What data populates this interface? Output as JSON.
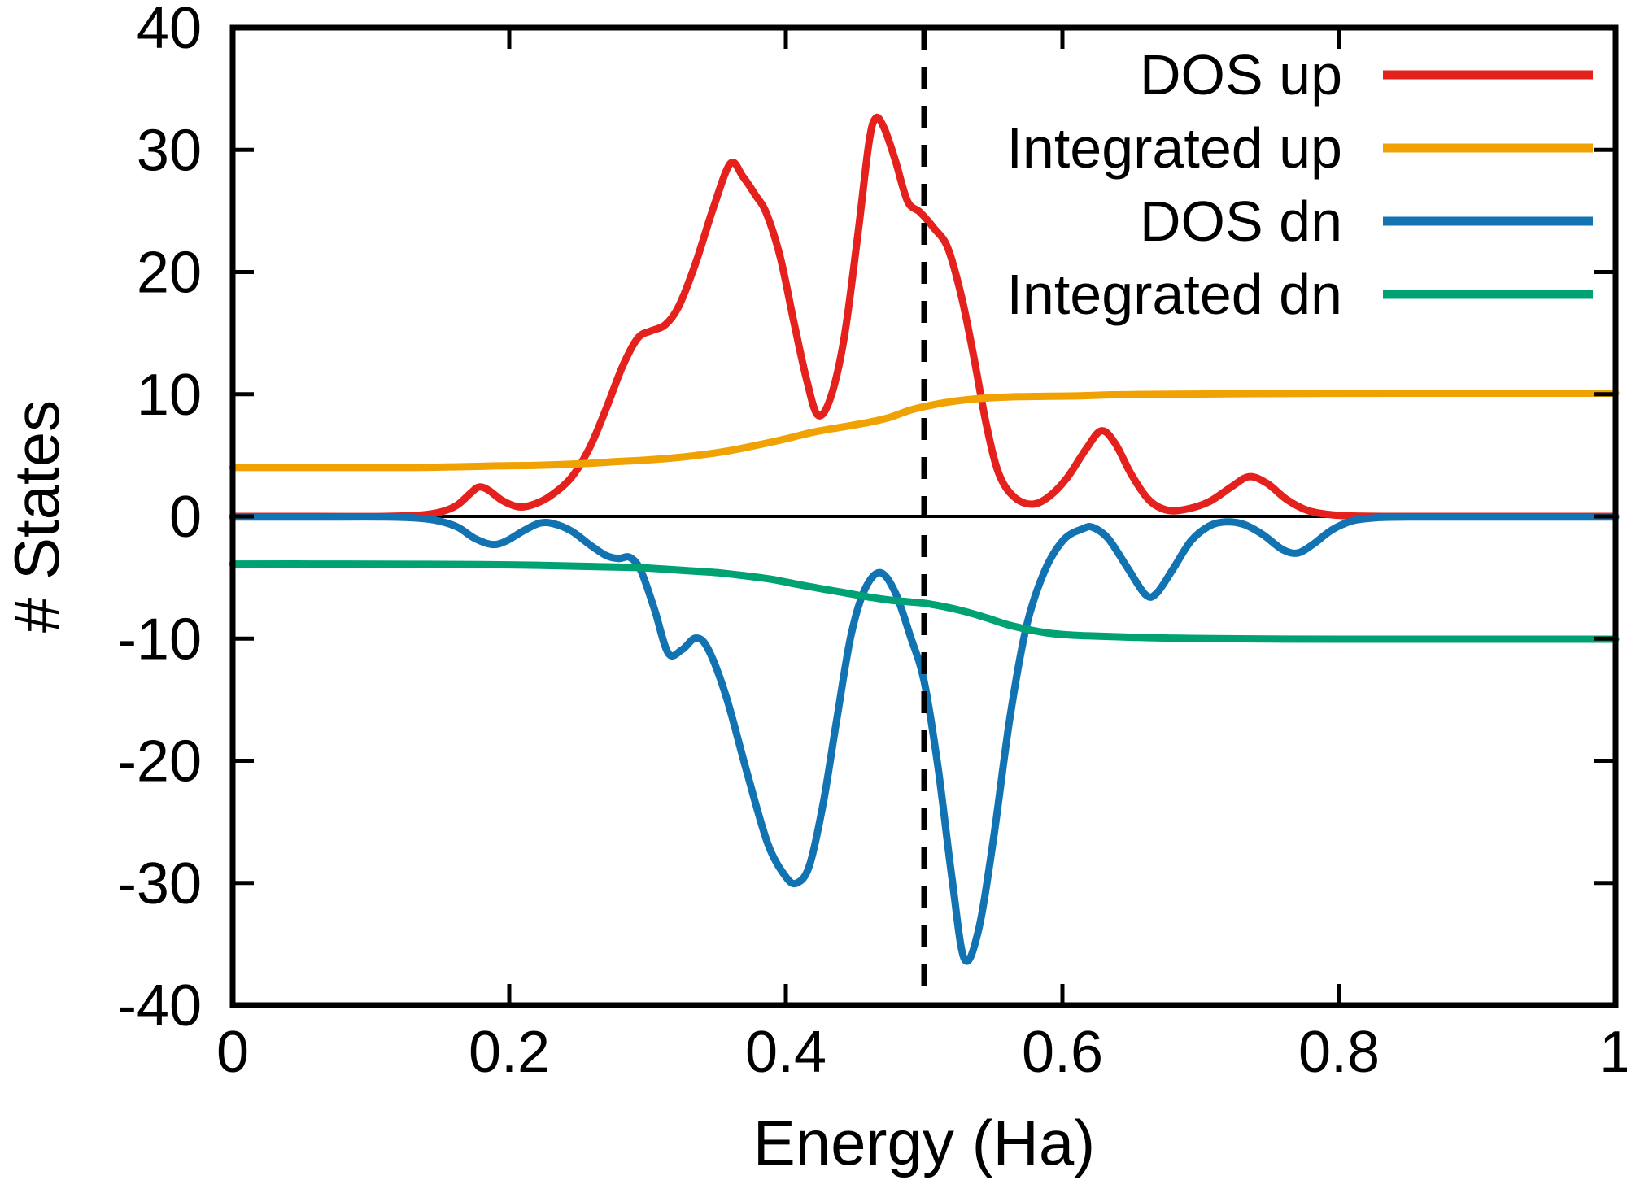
{
  "figure": {
    "background": "#ffffff",
    "border_color": "#000000"
  },
  "chart_data": {
    "type": "line",
    "title": "",
    "xlabel": "Energy (Ha)",
    "ylabel": "# States",
    "xlim": [
      0,
      1
    ],
    "ylim": [
      -40,
      40
    ],
    "x_tick_values": [
      0,
      0.2,
      0.4,
      0.6,
      0.8,
      1
    ],
    "x_tick_labels": [
      "0",
      "0.2",
      "0.4",
      "0.6",
      "0.8",
      "1"
    ],
    "y_tick_values": [
      40,
      30,
      20,
      10,
      0,
      -10,
      -20,
      -30,
      -40
    ],
    "y_tick_labels": [
      "40",
      "30",
      "20",
      "10",
      "0",
      "-10",
      "-20",
      "-30",
      "-40"
    ],
    "grid": false,
    "legend_position": "top-right-inside",
    "zero_line": {
      "y": 0,
      "color": "#000000"
    },
    "fermi_line": {
      "x": 0.5,
      "style": "dashed",
      "color": "#000000"
    },
    "series": [
      {
        "name": "DOS up",
        "color": "#e4211c",
        "points": [
          [
            0.0,
            0
          ],
          [
            0.06,
            0
          ],
          [
            0.11,
            0
          ],
          [
            0.135,
            0.1
          ],
          [
            0.15,
            0.35
          ],
          [
            0.162,
            0.9
          ],
          [
            0.172,
            1.9
          ],
          [
            0.178,
            2.4
          ],
          [
            0.185,
            2.15
          ],
          [
            0.195,
            1.3
          ],
          [
            0.207,
            0.78
          ],
          [
            0.218,
            1.0
          ],
          [
            0.23,
            1.7
          ],
          [
            0.245,
            3.2
          ],
          [
            0.258,
            5.6
          ],
          [
            0.27,
            8.8
          ],
          [
            0.282,
            12.3
          ],
          [
            0.293,
            14.6
          ],
          [
            0.303,
            15.2
          ],
          [
            0.313,
            15.7
          ],
          [
            0.323,
            17.3
          ],
          [
            0.335,
            20.8
          ],
          [
            0.348,
            25.4
          ],
          [
            0.36,
            28.9
          ],
          [
            0.369,
            27.8
          ],
          [
            0.378,
            26.3
          ],
          [
            0.386,
            24.8
          ],
          [
            0.396,
            21.2
          ],
          [
            0.406,
            15.8
          ],
          [
            0.415,
            11.2
          ],
          [
            0.423,
            8.3
          ],
          [
            0.432,
            9.6
          ],
          [
            0.442,
            14.5
          ],
          [
            0.452,
            23.0
          ],
          [
            0.46,
            30.5
          ],
          [
            0.465,
            32.6
          ],
          [
            0.471,
            31.8
          ],
          [
            0.479,
            29.2
          ],
          [
            0.488,
            25.8
          ],
          [
            0.497,
            24.9
          ],
          [
            0.507,
            23.6
          ],
          [
            0.517,
            22.0
          ],
          [
            0.527,
            18.0
          ],
          [
            0.536,
            13.0
          ],
          [
            0.545,
            7.5
          ],
          [
            0.554,
            3.5
          ],
          [
            0.565,
            1.6
          ],
          [
            0.578,
            1.0
          ],
          [
            0.59,
            1.6
          ],
          [
            0.603,
            3.1
          ],
          [
            0.617,
            5.5
          ],
          [
            0.628,
            7.0
          ],
          [
            0.638,
            6.0
          ],
          [
            0.65,
            3.4
          ],
          [
            0.663,
            1.3
          ],
          [
            0.676,
            0.5
          ],
          [
            0.69,
            0.6
          ],
          [
            0.706,
            1.2
          ],
          [
            0.722,
            2.4
          ],
          [
            0.735,
            3.25
          ],
          [
            0.748,
            2.7
          ],
          [
            0.762,
            1.4
          ],
          [
            0.777,
            0.5
          ],
          [
            0.793,
            0.15
          ],
          [
            0.81,
            0.03
          ],
          [
            0.84,
            0
          ],
          [
            0.92,
            0
          ],
          [
            1.0,
            0
          ]
        ]
      },
      {
        "name": "Integrated up",
        "color": "#f0a202",
        "points": [
          [
            0.0,
            4.0
          ],
          [
            0.08,
            4.0
          ],
          [
            0.13,
            4.0
          ],
          [
            0.16,
            4.05
          ],
          [
            0.19,
            4.13
          ],
          [
            0.22,
            4.18
          ],
          [
            0.25,
            4.3
          ],
          [
            0.28,
            4.5
          ],
          [
            0.3,
            4.62
          ],
          [
            0.32,
            4.8
          ],
          [
            0.34,
            5.05
          ],
          [
            0.36,
            5.4
          ],
          [
            0.38,
            5.85
          ],
          [
            0.4,
            6.35
          ],
          [
            0.42,
            6.9
          ],
          [
            0.44,
            7.3
          ],
          [
            0.46,
            7.7
          ],
          [
            0.475,
            8.1
          ],
          [
            0.49,
            8.7
          ],
          [
            0.505,
            9.1
          ],
          [
            0.52,
            9.4
          ],
          [
            0.535,
            9.6
          ],
          [
            0.55,
            9.72
          ],
          [
            0.57,
            9.8
          ],
          [
            0.59,
            9.83
          ],
          [
            0.61,
            9.86
          ],
          [
            0.63,
            9.93
          ],
          [
            0.65,
            9.97
          ],
          [
            0.68,
            10.0
          ],
          [
            0.71,
            10.02
          ],
          [
            0.74,
            10.05
          ],
          [
            0.78,
            10.07
          ],
          [
            0.85,
            10.08
          ],
          [
            1.0,
            10.08
          ]
        ]
      },
      {
        "name": "DOS dn",
        "color": "#1273b2",
        "points": [
          [
            0.0,
            -0.05
          ],
          [
            0.06,
            -0.05
          ],
          [
            0.11,
            -0.05
          ],
          [
            0.135,
            -0.15
          ],
          [
            0.15,
            -0.4
          ],
          [
            0.163,
            -0.9
          ],
          [
            0.175,
            -1.8
          ],
          [
            0.188,
            -2.3
          ],
          [
            0.198,
            -2.0
          ],
          [
            0.21,
            -1.2
          ],
          [
            0.222,
            -0.55
          ],
          [
            0.232,
            -0.6
          ],
          [
            0.245,
            -1.2
          ],
          [
            0.258,
            -2.3
          ],
          [
            0.27,
            -3.2
          ],
          [
            0.279,
            -3.45
          ],
          [
            0.287,
            -3.35
          ],
          [
            0.295,
            -4.4
          ],
          [
            0.305,
            -7.6
          ],
          [
            0.315,
            -11.2
          ],
          [
            0.325,
            -10.9
          ],
          [
            0.335,
            -9.95
          ],
          [
            0.344,
            -10.9
          ],
          [
            0.357,
            -14.8
          ],
          [
            0.372,
            -21.0
          ],
          [
            0.387,
            -26.8
          ],
          [
            0.4,
            -29.5
          ],
          [
            0.408,
            -30.0
          ],
          [
            0.417,
            -28.6
          ],
          [
            0.427,
            -23.5
          ],
          [
            0.437,
            -16.5
          ],
          [
            0.447,
            -9.8
          ],
          [
            0.457,
            -6.0
          ],
          [
            0.468,
            -4.6
          ],
          [
            0.479,
            -6.2
          ],
          [
            0.49,
            -9.8
          ],
          [
            0.5,
            -13.5
          ],
          [
            0.51,
            -20.5
          ],
          [
            0.52,
            -29.5
          ],
          [
            0.529,
            -36.2
          ],
          [
            0.539,
            -34.0
          ],
          [
            0.55,
            -26.5
          ],
          [
            0.562,
            -16.5
          ],
          [
            0.574,
            -9.0
          ],
          [
            0.587,
            -4.5
          ],
          [
            0.601,
            -1.9
          ],
          [
            0.615,
            -1.0
          ],
          [
            0.622,
            -0.9
          ],
          [
            0.633,
            -1.8
          ],
          [
            0.647,
            -4.2
          ],
          [
            0.66,
            -6.4
          ],
          [
            0.668,
            -6.3
          ],
          [
            0.68,
            -4.3
          ],
          [
            0.693,
            -2.0
          ],
          [
            0.706,
            -0.8
          ],
          [
            0.718,
            -0.45
          ],
          [
            0.731,
            -0.65
          ],
          [
            0.745,
            -1.5
          ],
          [
            0.759,
            -2.7
          ],
          [
            0.77,
            -3.0
          ],
          [
            0.781,
            -2.3
          ],
          [
            0.795,
            -1.1
          ],
          [
            0.81,
            -0.35
          ],
          [
            0.828,
            -0.1
          ],
          [
            0.85,
            -0.05
          ],
          [
            0.93,
            -0.05
          ],
          [
            1.0,
            -0.05
          ]
        ]
      },
      {
        "name": "Integrated dn",
        "color": "#00a273",
        "points": [
          [
            0.0,
            -3.9
          ],
          [
            0.08,
            -3.9
          ],
          [
            0.14,
            -3.92
          ],
          [
            0.18,
            -3.95
          ],
          [
            0.22,
            -4.0
          ],
          [
            0.26,
            -4.1
          ],
          [
            0.29,
            -4.18
          ],
          [
            0.31,
            -4.3
          ],
          [
            0.33,
            -4.45
          ],
          [
            0.35,
            -4.6
          ],
          [
            0.37,
            -4.85
          ],
          [
            0.39,
            -5.15
          ],
          [
            0.41,
            -5.6
          ],
          [
            0.43,
            -6.0
          ],
          [
            0.445,
            -6.3
          ],
          [
            0.46,
            -6.6
          ],
          [
            0.475,
            -6.85
          ],
          [
            0.49,
            -7.0
          ],
          [
            0.5,
            -7.1
          ],
          [
            0.515,
            -7.4
          ],
          [
            0.53,
            -7.8
          ],
          [
            0.545,
            -8.3
          ],
          [
            0.56,
            -8.85
          ],
          [
            0.575,
            -9.25
          ],
          [
            0.59,
            -9.55
          ],
          [
            0.605,
            -9.7
          ],
          [
            0.62,
            -9.78
          ],
          [
            0.64,
            -9.85
          ],
          [
            0.66,
            -9.92
          ],
          [
            0.685,
            -9.97
          ],
          [
            0.71,
            -10.0
          ],
          [
            0.75,
            -10.03
          ],
          [
            0.8,
            -10.05
          ],
          [
            1.0,
            -10.05
          ]
        ]
      }
    ]
  }
}
